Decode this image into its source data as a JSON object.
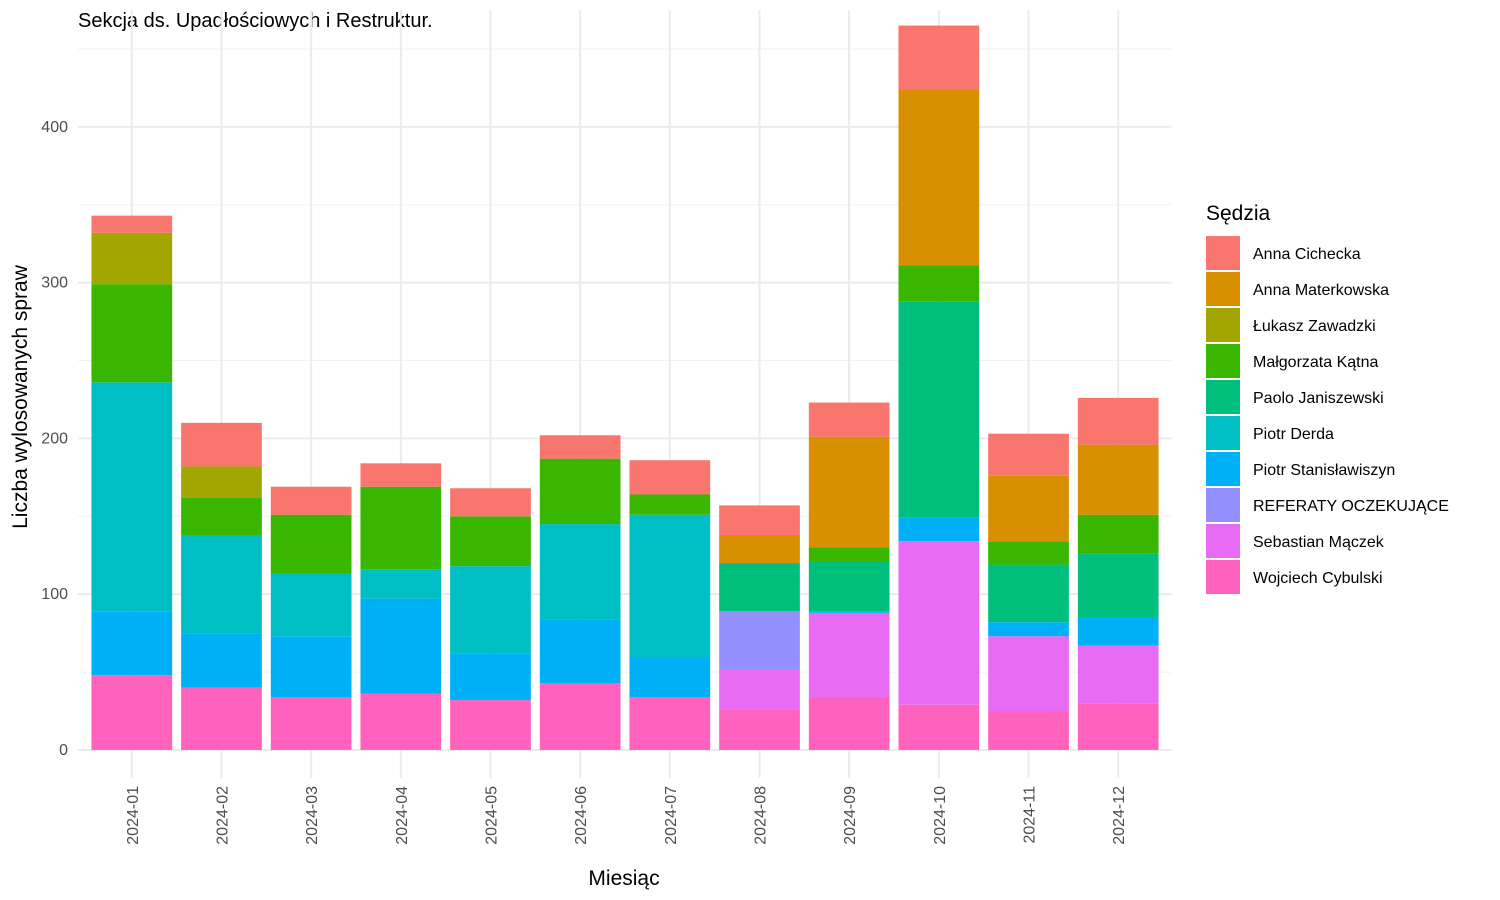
{
  "chart_data": {
    "type": "bar",
    "stacked": true,
    "title": "Sekcja ds. Upadłościowych i Restruktur.",
    "xlabel": "Miesiąc",
    "ylabel": "Liczba wylosowanych spraw",
    "ylim": [
      -18,
      475
    ],
    "yticks": [
      0,
      100,
      200,
      300,
      400
    ],
    "grid": true,
    "legend_title": "Sędzia",
    "legend_position": "right",
    "categories": [
      "2024-01",
      "2024-02",
      "2024-03",
      "2024-04",
      "2024-05",
      "2024-06",
      "2024-07",
      "2024-08",
      "2024-09",
      "2024-10",
      "2024-11",
      "2024-12"
    ],
    "series": [
      {
        "name": "Anna Cichecka",
        "color": "#F8766D",
        "values": [
          11,
          28,
          18,
          15,
          18,
          15,
          22,
          19,
          22,
          41,
          27,
          30
        ]
      },
      {
        "name": "Anna Materkowska",
        "color": "#D89000",
        "values": [
          0,
          0,
          0,
          0,
          0,
          0,
          0,
          18,
          71,
          113,
          42,
          45
        ]
      },
      {
        "name": "Łukasz Zawadzki",
        "color": "#A3A500",
        "values": [
          33,
          20,
          0,
          0,
          0,
          0,
          0,
          0,
          0,
          0,
          0,
          0
        ]
      },
      {
        "name": "Małgorzata Kątna",
        "color": "#39B600",
        "values": [
          63,
          24,
          38,
          53,
          32,
          42,
          13,
          0,
          9,
          23,
          15,
          25
        ]
      },
      {
        "name": "Paolo Janiszewski",
        "color": "#00BF7D",
        "values": [
          0,
          0,
          0,
          0,
          0,
          0,
          0,
          31,
          32,
          139,
          37,
          41
        ]
      },
      {
        "name": "Piotr Derda",
        "color": "#00BFC4",
        "values": [
          147,
          63,
          40,
          19,
          56,
          61,
          92,
          0,
          0,
          0,
          0,
          0
        ]
      },
      {
        "name": "Piotr Stanisławiszyn",
        "color": "#00B0F6",
        "values": [
          41,
          35,
          39,
          61,
          30,
          41,
          25,
          0,
          1,
          15,
          9,
          18
        ]
      },
      {
        "name": "REFERATY OCZEKUJĄCE",
        "color": "#9590FF",
        "values": [
          0,
          0,
          0,
          0,
          0,
          0,
          0,
          37,
          0,
          0,
          0,
          0
        ]
      },
      {
        "name": "Sebastian Mączek",
        "color": "#E76BF3",
        "values": [
          0,
          0,
          0,
          0,
          0,
          0,
          0,
          26,
          54,
          105,
          48,
          37
        ]
      },
      {
        "name": "Wojciech Cybulski",
        "color": "#FF62BC",
        "values": [
          48,
          40,
          34,
          36,
          32,
          43,
          34,
          26,
          34,
          29,
          25,
          30
        ]
      }
    ]
  }
}
